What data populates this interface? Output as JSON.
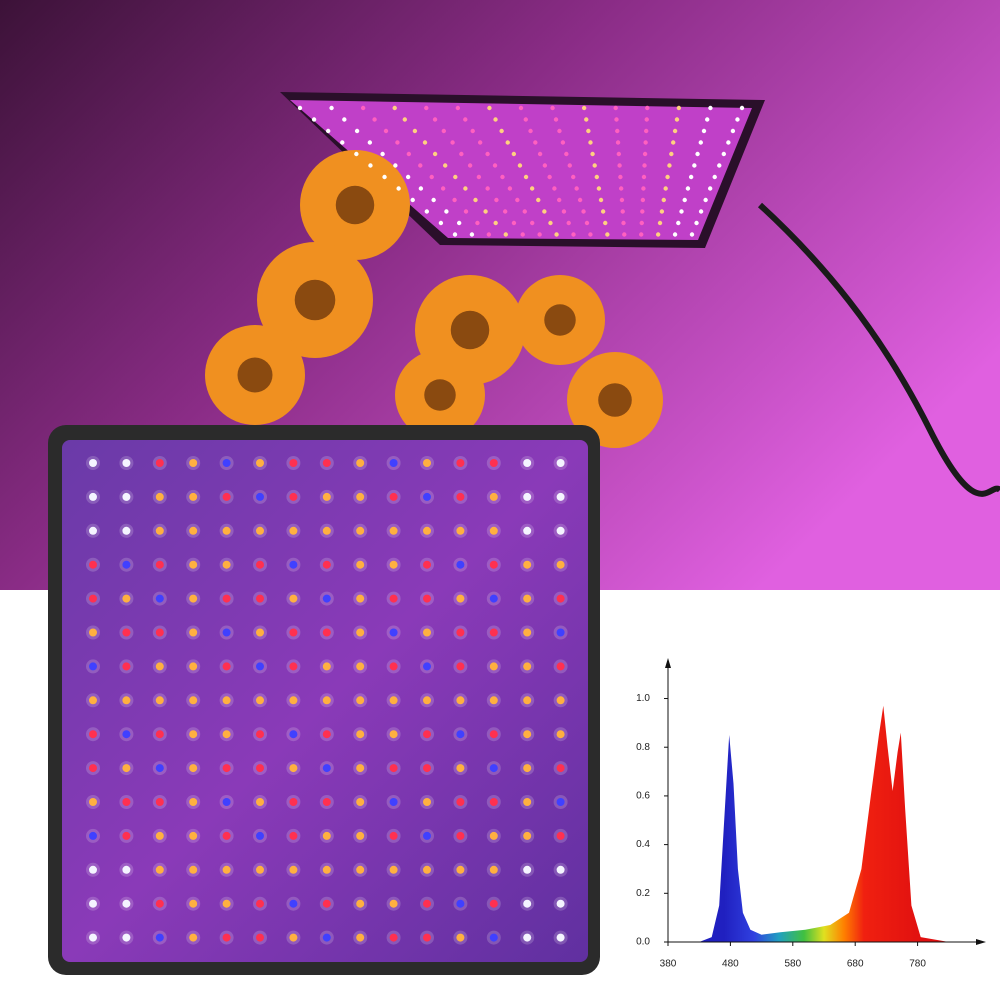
{
  "chart_data": {
    "type": "area",
    "x": [
      430,
      450,
      462,
      470,
      478,
      485,
      492,
      500,
      512,
      530,
      560,
      600,
      640,
      670,
      690,
      705,
      718,
      725,
      732,
      740,
      748,
      753,
      760,
      770,
      785,
      830
    ],
    "values": [
      0,
      0.02,
      0.15,
      0.5,
      0.85,
      0.65,
      0.3,
      0.12,
      0.05,
      0.03,
      0.04,
      0.05,
      0.07,
      0.12,
      0.3,
      0.6,
      0.85,
      0.97,
      0.8,
      0.62,
      0.78,
      0.86,
      0.55,
      0.15,
      0.02,
      0
    ],
    "xlim": [
      380,
      880
    ],
    "ylim": [
      0,
      1.15
    ],
    "xticks": [
      380,
      480,
      580,
      680,
      780
    ],
    "yticks": [
      {
        "value": 0,
        "label": "0.0"
      },
      0.2,
      0.4,
      0.6,
      0.8,
      {
        "value": 1,
        "label": "1.0"
      }
    ]
  }
}
